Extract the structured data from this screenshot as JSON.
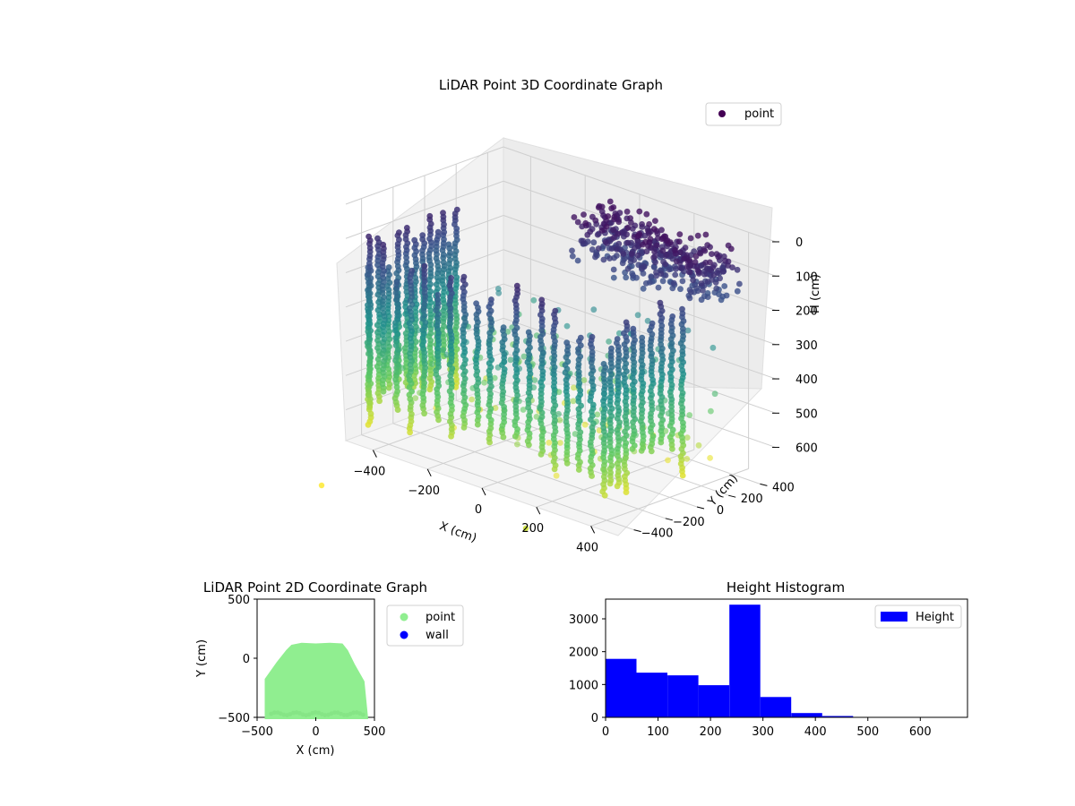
{
  "chart_data": [
    {
      "type": "scatter3d",
      "title": "LiDAR Point 3D Coordinate Graph",
      "xlabel": "X (cm)",
      "ylabel": "Y (cm)",
      "zlabel": "H (cm)",
      "xlim": [
        -500,
        500
      ],
      "ylim": [
        -500,
        500
      ],
      "zlim": [
        0,
        690
      ],
      "z_inverted": true,
      "xticks": [
        -400,
        -200,
        0,
        200,
        400
      ],
      "yticks": [
        -400,
        -200,
        0,
        200,
        400
      ],
      "zticks": [
        0,
        100,
        200,
        300,
        400,
        500,
        600
      ],
      "colormap": "viridis",
      "legend": {
        "entries": [
          "point"
        ],
        "placement": "top-right"
      },
      "marker_color": "#440154",
      "grid": true
    },
    {
      "type": "scatter",
      "title": "LiDAR Point 2D Coordinate Graph",
      "xlabel": "X (cm)",
      "ylabel": "Y (cm)",
      "xlim": [
        -500,
        500
      ],
      "ylim": [
        -500,
        500
      ],
      "xticks": [
        -500,
        0,
        500
      ],
      "yticks": [
        -500,
        0,
        500
      ],
      "series": [
        {
          "name": "point",
          "color": "#90ee90"
        },
        {
          "name": "wall",
          "color": "#0000ff"
        }
      ],
      "legend": {
        "placement": "outside-right"
      }
    },
    {
      "type": "bar",
      "title": "Height Histogram",
      "bin_edges": [
        0,
        59,
        118,
        177,
        236,
        295,
        354,
        413,
        472,
        531,
        590,
        690
      ],
      "values": [
        1780,
        1360,
        1280,
        980,
        3430,
        620,
        130,
        40,
        10,
        5,
        3
      ],
      "xlim": [
        0,
        690
      ],
      "ylim": [
        0,
        3600
      ],
      "xticks": [
        0,
        100,
        200,
        300,
        400,
        500,
        600
      ],
      "yticks": [
        0,
        1000,
        2000,
        3000
      ],
      "color": "#0000ff",
      "series": [
        {
          "name": "Height"
        }
      ],
      "legend": {
        "placement": "top-right"
      }
    }
  ]
}
